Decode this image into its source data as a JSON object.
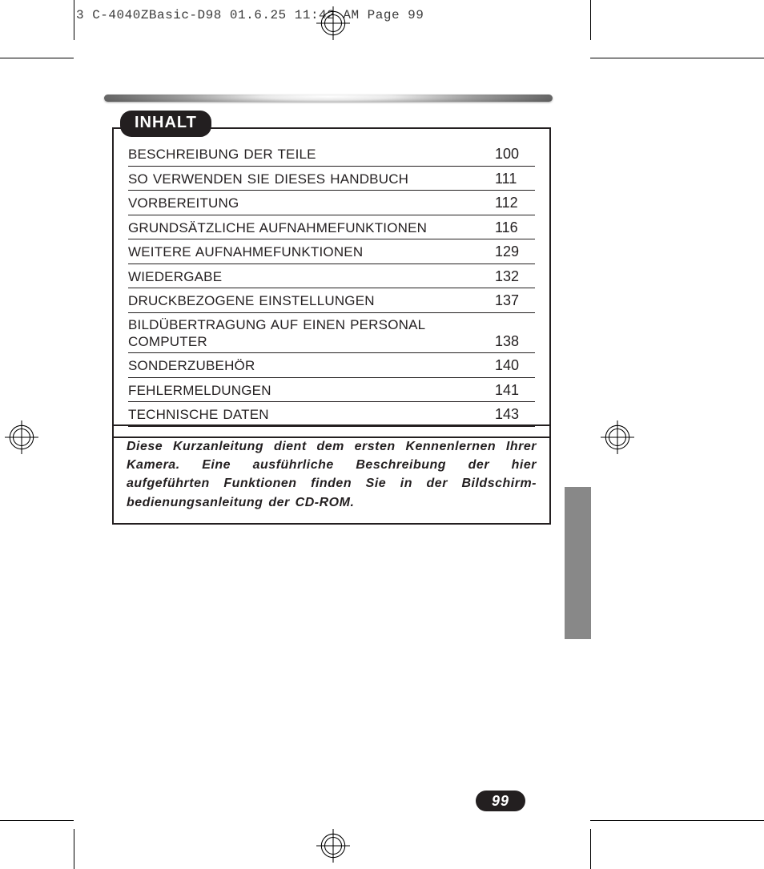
{
  "print_header": "3 C-4040ZBasic-D98  01.6.25 11:42 AM  Page 99",
  "toc": {
    "heading": "INHALT",
    "rows": [
      {
        "title": "BESCHREIBUNG DER TEILE",
        "page": "100"
      },
      {
        "title": "SO VERWENDEN SIE DIESES HANDBUCH",
        "page": "111"
      },
      {
        "title": "VORBEREITUNG",
        "page": "112"
      },
      {
        "title": "GRUNDSÄTZLICHE AUFNAHMEFUNKTIONEN",
        "page": "116"
      },
      {
        "title": "WEITERE AUFNAHMEFUNKTIONEN",
        "page": "129"
      },
      {
        "title": "WIEDERGABE",
        "page": "132"
      },
      {
        "title": "DRUCKBEZOGENE EINSTELLUNGEN",
        "page": "137"
      },
      {
        "title": "BILDÜBERTRAGUNG AUF EINEN PERSONAL COMPUTER",
        "page": "138"
      },
      {
        "title": "SONDERZUBEHÖR",
        "page": "140"
      },
      {
        "title": "FEHLERMELDUNGEN",
        "page": "141"
      },
      {
        "title": "TECHNISCHE DATEN",
        "page": "143"
      }
    ]
  },
  "note_text": "Diese Kurzanleitung dient dem ersten Kennenlernen Ihrer Kamera. Eine ausführliche Beschreibung der hier aufgeführten Funktionen finden Sie in der Bildschirm-bedienungsanleitung der CD-ROM.",
  "page_number": "99",
  "colors": {
    "ink": "#231f20",
    "side_tab": "#888888",
    "background": "#ffffff"
  }
}
